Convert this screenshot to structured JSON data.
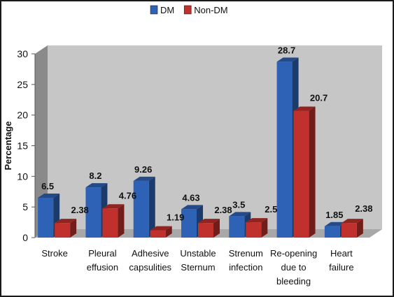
{
  "chart_data": {
    "type": "bar",
    "title": "",
    "xlabel": "",
    "ylabel": "Percentage",
    "ylim": [
      0,
      30
    ],
    "yticks": [
      0,
      5,
      10,
      15,
      20,
      25,
      30
    ],
    "grid": false,
    "legend_position": "top-center",
    "categories": [
      [
        "Stroke"
      ],
      [
        "Pleural",
        "effusion"
      ],
      [
        "Adhesive",
        "capsulities"
      ],
      [
        "Unstable",
        "Sternum"
      ],
      [
        "Strenum",
        "infection"
      ],
      [
        "Re-opening",
        "due to",
        "bleeding"
      ],
      [
        "Heart",
        "failure"
      ]
    ],
    "series": [
      {
        "name": "DM",
        "color": "#2e62b6",
        "values": [
          6.5,
          8.2,
          9.26,
          4.63,
          3.5,
          28.7,
          1.85
        ],
        "labels": [
          "6.5",
          "8.2",
          "9.26",
          "4.63",
          "3.5",
          "28.7",
          "1.85"
        ]
      },
      {
        "name": "Non-DM",
        "color": "#c0302c",
        "values": [
          2.38,
          4.76,
          1.19,
          2.38,
          2.5,
          20.7,
          2.38
        ],
        "labels": [
          "2.38",
          "4.76",
          "1.19",
          "2.38",
          "2.5",
          "20.7",
          "2.38"
        ]
      }
    ]
  }
}
